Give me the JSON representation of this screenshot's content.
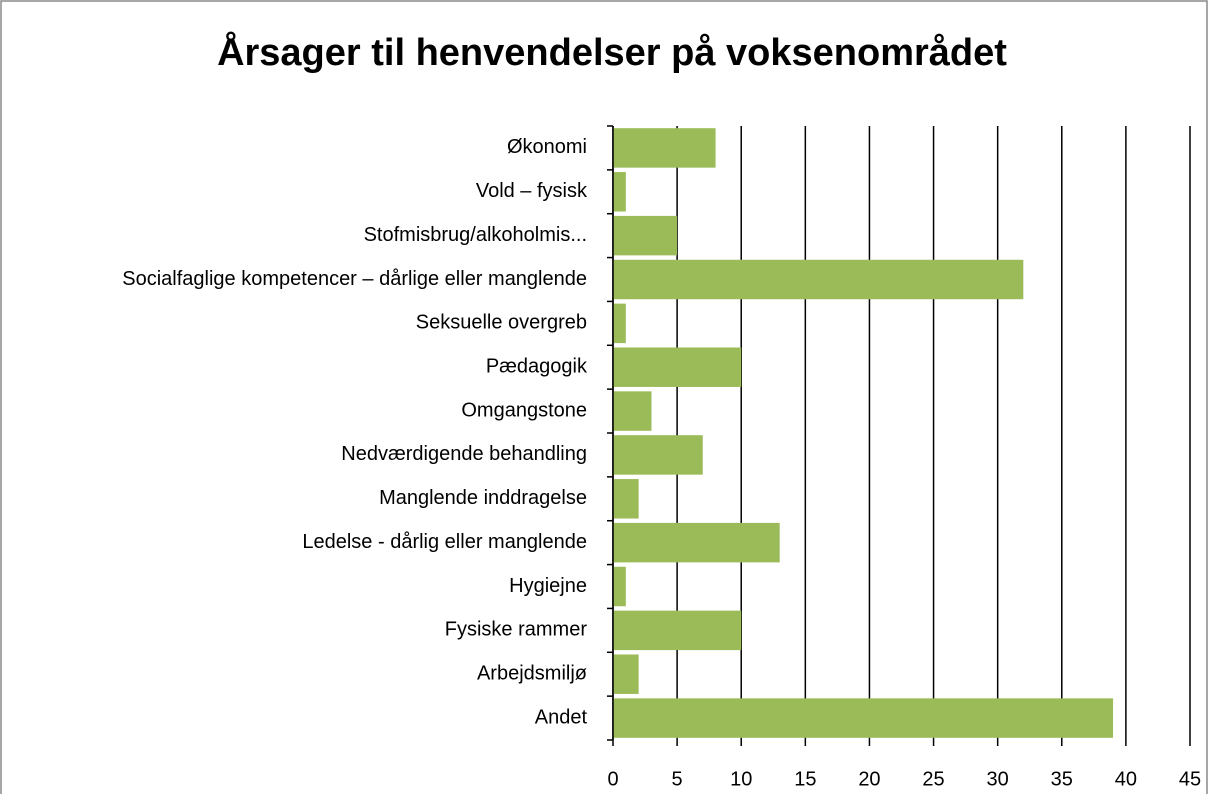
{
  "chart_data": {
    "type": "barh",
    "title": "Årsager til henvendelser på voksenområdet",
    "categories": [
      "Økonomi",
      "Vold – fysisk",
      "Stofmisbrug/alkoholmis...",
      "Socialfaglige kompetencer – dårlige eller manglende",
      "Seksuelle overgreb",
      "Pædagogik",
      "Omgangstone",
      "Nedværdigende behandling",
      "Manglende inddragelse",
      "Ledelse - dårlig eller manglende",
      "Hygiejne",
      "Fysiske rammer",
      "Arbejdsmiljø",
      "Andet"
    ],
    "values": [
      8,
      1,
      5,
      32,
      1,
      10,
      3,
      7,
      2,
      13,
      1,
      10,
      2,
      39
    ],
    "color": "#9bbb59",
    "xlim": [
      0,
      45
    ],
    "xticks": [
      0,
      5,
      10,
      15,
      20,
      25,
      30,
      35,
      40,
      45
    ],
    "grid": true
  }
}
